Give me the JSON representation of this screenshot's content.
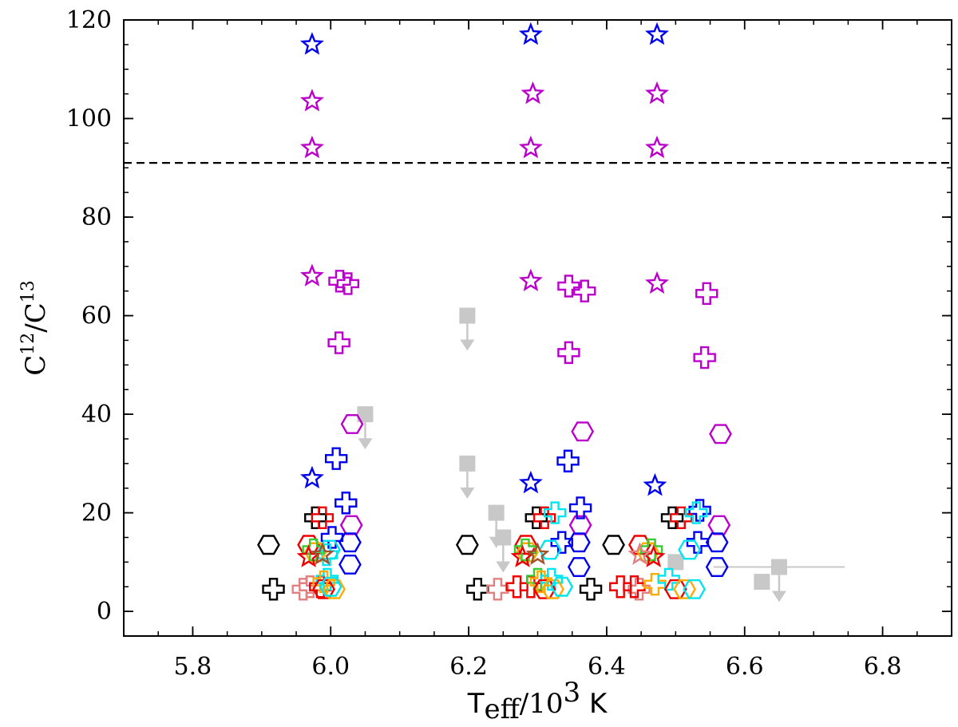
{
  "chart_data": {
    "type": "scatter",
    "xlabel": {
      "main": "T",
      "sub": "eff",
      "rest": "/10",
      "sup": "3",
      "unit": " K"
    },
    "ylabel": {
      "main": "C",
      "sup1": "12",
      "mid": "/C",
      "sup2": "13"
    },
    "xlim": [
      5.7,
      6.9
    ],
    "ylim": [
      -5,
      120
    ],
    "xticks": [
      5.8,
      6.0,
      6.2,
      6.4,
      6.6,
      6.8
    ],
    "xtick_labels": [
      "5.8",
      "6.0",
      "6.2",
      "6.4",
      "6.6",
      "6.8"
    ],
    "yticks": [
      0,
      20,
      40,
      60,
      80,
      100,
      120
    ],
    "ytick_labels": [
      "0",
      "20",
      "40",
      "60",
      "80",
      "100",
      "120"
    ],
    "x_minor_step": 0.05,
    "y_minor_step": 5,
    "grid": false,
    "reference_line": {
      "y": 91,
      "style": "dashed",
      "color": "#000000"
    },
    "colors": {
      "blue": "#0000ee",
      "magenta": "#bb00cc",
      "black": "#000000",
      "red": "#ee0000",
      "cyan": "#00e5ee",
      "orange": "#ffaa00",
      "brown": "#a0522d",
      "salmon": "#e08080",
      "green": "#33cc33",
      "gray": "#c8c8c8"
    },
    "points": [
      {
        "x": 5.973,
        "y": 115,
        "marker": "star",
        "color": "blue"
      },
      {
        "x": 5.973,
        "y": 103.5,
        "marker": "star",
        "color": "magenta"
      },
      {
        "x": 5.973,
        "y": 94,
        "marker": "star",
        "color": "magenta"
      },
      {
        "x": 5.973,
        "y": 68,
        "marker": "star",
        "color": "magenta"
      },
      {
        "x": 6.29,
        "y": 117,
        "marker": "star",
        "color": "blue"
      },
      {
        "x": 6.293,
        "y": 105,
        "marker": "star",
        "color": "magenta"
      },
      {
        "x": 6.29,
        "y": 94,
        "marker": "star",
        "color": "magenta"
      },
      {
        "x": 6.29,
        "y": 67,
        "marker": "star",
        "color": "magenta"
      },
      {
        "x": 6.473,
        "y": 117,
        "marker": "star",
        "color": "blue"
      },
      {
        "x": 6.473,
        "y": 105,
        "marker": "star",
        "color": "magenta"
      },
      {
        "x": 6.473,
        "y": 94,
        "marker": "star",
        "color": "magenta"
      },
      {
        "x": 6.473,
        "y": 66.5,
        "marker": "star",
        "color": "magenta"
      },
      {
        "x": 5.973,
        "y": 27,
        "marker": "star",
        "color": "blue"
      },
      {
        "x": 6.29,
        "y": 26,
        "marker": "star",
        "color": "blue"
      },
      {
        "x": 6.47,
        "y": 25.5,
        "marker": "star",
        "color": "blue"
      },
      {
        "x": 6.013,
        "y": 67,
        "marker": "plus",
        "color": "magenta"
      },
      {
        "x": 6.025,
        "y": 66.5,
        "marker": "plus",
        "color": "magenta"
      },
      {
        "x": 6.012,
        "y": 54.5,
        "marker": "plus",
        "color": "magenta"
      },
      {
        "x": 6.345,
        "y": 66,
        "marker": "plus",
        "color": "magenta"
      },
      {
        "x": 6.368,
        "y": 65,
        "marker": "plus",
        "color": "magenta"
      },
      {
        "x": 6.345,
        "y": 52.5,
        "marker": "plus",
        "color": "magenta"
      },
      {
        "x": 6.545,
        "y": 64.5,
        "marker": "plus",
        "color": "magenta"
      },
      {
        "x": 6.542,
        "y": 51.5,
        "marker": "plus",
        "color": "magenta"
      },
      {
        "x": 6.031,
        "y": 38,
        "marker": "hexagon",
        "color": "magenta"
      },
      {
        "x": 6.365,
        "y": 36.5,
        "marker": "hexagon",
        "color": "magenta"
      },
      {
        "x": 6.565,
        "y": 36,
        "marker": "hexagon",
        "color": "magenta"
      },
      {
        "x": 6.03,
        "y": 17.5,
        "marker": "hexagon",
        "color": "magenta"
      },
      {
        "x": 6.362,
        "y": 17.5,
        "marker": "hexagon",
        "color": "magenta"
      },
      {
        "x": 6.563,
        "y": 17.5,
        "marker": "hexagon",
        "color": "magenta"
      },
      {
        "x": 6.008,
        "y": 31,
        "marker": "plus",
        "color": "blue"
      },
      {
        "x": 6.022,
        "y": 22,
        "marker": "plus",
        "color": "blue"
      },
      {
        "x": 6.344,
        "y": 30.5,
        "marker": "plus",
        "color": "blue"
      },
      {
        "x": 6.362,
        "y": 21,
        "marker": "plus",
        "color": "blue"
      },
      {
        "x": 6.535,
        "y": 20.5,
        "marker": "plus",
        "color": "blue"
      },
      {
        "x": 6.002,
        "y": 15,
        "marker": "plus",
        "color": "blue"
      },
      {
        "x": 6.335,
        "y": 14,
        "marker": "plus",
        "color": "blue"
      },
      {
        "x": 6.532,
        "y": 14,
        "marker": "plus",
        "color": "blue"
      },
      {
        "x": 6.028,
        "y": 14,
        "marker": "hexagon",
        "color": "blue"
      },
      {
        "x": 6.028,
        "y": 9.5,
        "marker": "hexagon",
        "color": "blue"
      },
      {
        "x": 6.36,
        "y": 14,
        "marker": "hexagon",
        "color": "blue"
      },
      {
        "x": 6.36,
        "y": 9,
        "marker": "hexagon",
        "color": "blue"
      },
      {
        "x": 6.56,
        "y": 14,
        "marker": "hexagon",
        "color": "blue"
      },
      {
        "x": 6.56,
        "y": 9,
        "marker": "hexagon",
        "color": "blue"
      },
      {
        "x": 5.91,
        "y": 13.5,
        "marker": "hexagon",
        "color": "black"
      },
      {
        "x": 6.198,
        "y": 13.5,
        "marker": "hexagon",
        "color": "black"
      },
      {
        "x": 6.41,
        "y": 13.5,
        "marker": "hexagon",
        "color": "black"
      },
      {
        "x": 5.978,
        "y": 19,
        "marker": "plus",
        "color": "black"
      },
      {
        "x": 6.298,
        "y": 19,
        "marker": "plus",
        "color": "black"
      },
      {
        "x": 6.495,
        "y": 19,
        "marker": "plus",
        "color": "black"
      },
      {
        "x": 5.917,
        "y": 4.5,
        "marker": "plus",
        "color": "black"
      },
      {
        "x": 6.213,
        "y": 4.5,
        "marker": "plus",
        "color": "black"
      },
      {
        "x": 6.377,
        "y": 4.5,
        "marker": "plus",
        "color": "black"
      },
      {
        "x": 5.988,
        "y": 19,
        "marker": "plus",
        "color": "red"
      },
      {
        "x": 6.31,
        "y": 19,
        "marker": "plus",
        "color": "red"
      },
      {
        "x": 6.508,
        "y": 19,
        "marker": "plus",
        "color": "red"
      },
      {
        "x": 6.325,
        "y": 20,
        "marker": "plus",
        "color": "cyan"
      },
      {
        "x": 6.53,
        "y": 20,
        "marker": "plus",
        "color": "cyan"
      },
      {
        "x": 5.994,
        "y": 11.5,
        "marker": "plus",
        "color": "cyan"
      },
      {
        "x": 5.968,
        "y": 13.5,
        "marker": "hexagon",
        "color": "red"
      },
      {
        "x": 6.283,
        "y": 13.5,
        "marker": "hexagon",
        "color": "red"
      },
      {
        "x": 6.448,
        "y": 13.5,
        "marker": "hexagon",
        "color": "red"
      },
      {
        "x": 5.998,
        "y": 12.5,
        "marker": "hexagon",
        "color": "cyan"
      },
      {
        "x": 6.318,
        "y": 12.5,
        "marker": "hexagon",
        "color": "cyan"
      },
      {
        "x": 6.52,
        "y": 12.5,
        "marker": "hexagon",
        "color": "cyan"
      },
      {
        "x": 5.978,
        "y": 12,
        "marker": "hexagon",
        "color": "orange"
      },
      {
        "x": 6.285,
        "y": 12,
        "marker": "hexagon",
        "color": "orange"
      },
      {
        "x": 6.46,
        "y": 12,
        "marker": "hexagon",
        "color": "orange"
      },
      {
        "x": 5.975,
        "y": 12.5,
        "marker": "plus",
        "color": "green"
      },
      {
        "x": 6.282,
        "y": 12.5,
        "marker": "plus",
        "color": "green"
      },
      {
        "x": 6.465,
        "y": 12.5,
        "marker": "plus",
        "color": "green"
      },
      {
        "x": 5.968,
        "y": 11,
        "marker": "star",
        "color": "red"
      },
      {
        "x": 5.988,
        "y": 11.5,
        "marker": "star",
        "color": "brown"
      },
      {
        "x": 6.278,
        "y": 11,
        "marker": "star",
        "color": "red"
      },
      {
        "x": 6.3,
        "y": 11.5,
        "marker": "star",
        "color": "brown"
      },
      {
        "x": 6.468,
        "y": 11,
        "marker": "star",
        "color": "red"
      },
      {
        "x": 6.448,
        "y": 11.5,
        "marker": "star",
        "color": "salmon"
      },
      {
        "x": 5.96,
        "y": 4.5,
        "marker": "plus",
        "color": "salmon"
      },
      {
        "x": 5.97,
        "y": 5,
        "marker": "plus",
        "color": "salmon"
      },
      {
        "x": 6.242,
        "y": 4.5,
        "marker": "plus",
        "color": "salmon"
      },
      {
        "x": 6.447,
        "y": 4.5,
        "marker": "plus",
        "color": "salmon"
      },
      {
        "x": 5.985,
        "y": 5,
        "marker": "plus",
        "color": "red"
      },
      {
        "x": 6.27,
        "y": 5,
        "marker": "plus",
        "color": "red"
      },
      {
        "x": 6.29,
        "y": 5,
        "marker": "plus",
        "color": "red"
      },
      {
        "x": 6.42,
        "y": 5,
        "marker": "plus",
        "color": "red"
      },
      {
        "x": 6.44,
        "y": 5,
        "marker": "plus",
        "color": "red"
      },
      {
        "x": 6.3,
        "y": 6.5,
        "marker": "plus",
        "color": "green"
      },
      {
        "x": 6.32,
        "y": 6.5,
        "marker": "plus",
        "color": "cyan"
      },
      {
        "x": 5.995,
        "y": 6.5,
        "marker": "plus",
        "color": "cyan"
      },
      {
        "x": 5.99,
        "y": 6,
        "marker": "plus",
        "color": "orange"
      },
      {
        "x": 6.305,
        "y": 6,
        "marker": "plus",
        "color": "orange"
      },
      {
        "x": 6.47,
        "y": 5.5,
        "marker": "plus",
        "color": "orange"
      },
      {
        "x": 6.49,
        "y": 6.5,
        "marker": "plus",
        "color": "cyan"
      },
      {
        "x": 5.99,
        "y": 4.5,
        "marker": "hexagon",
        "color": "red"
      },
      {
        "x": 6.005,
        "y": 4.5,
        "marker": "hexagon",
        "color": "orange"
      },
      {
        "x": 6.0,
        "y": 5,
        "marker": "hexagon",
        "color": "cyan"
      },
      {
        "x": 6.31,
        "y": 4.5,
        "marker": "hexagon",
        "color": "red"
      },
      {
        "x": 6.322,
        "y": 4.5,
        "marker": "hexagon",
        "color": "orange"
      },
      {
        "x": 6.335,
        "y": 5,
        "marker": "hexagon",
        "color": "cyan"
      },
      {
        "x": 6.5,
        "y": 4.5,
        "marker": "hexagon",
        "color": "red"
      },
      {
        "x": 6.513,
        "y": 4.5,
        "marker": "hexagon",
        "color": "orange"
      },
      {
        "x": 6.527,
        "y": 4.5,
        "marker": "hexagon",
        "color": "cyan"
      }
    ],
    "upper_limits": [
      {
        "x": 6.05,
        "y": 40,
        "color": "gray"
      },
      {
        "x": 6.198,
        "y": 60,
        "color": "gray"
      },
      {
        "x": 6.198,
        "y": 30,
        "color": "gray"
      },
      {
        "x": 6.24,
        "y": 20,
        "color": "gray"
      },
      {
        "x": 6.25,
        "y": 15,
        "color": "gray"
      },
      {
        "x": 6.65,
        "y": 9,
        "color": "gray"
      }
    ],
    "gray_squares": [
      {
        "x": 6.5,
        "y": 10,
        "color": "gray"
      },
      {
        "x": 6.625,
        "y": 6,
        "color": "gray"
      }
    ],
    "xerr_lines": [
      {
        "x1": 6.555,
        "x2": 6.745,
        "y": 9,
        "color": "gray"
      }
    ]
  }
}
